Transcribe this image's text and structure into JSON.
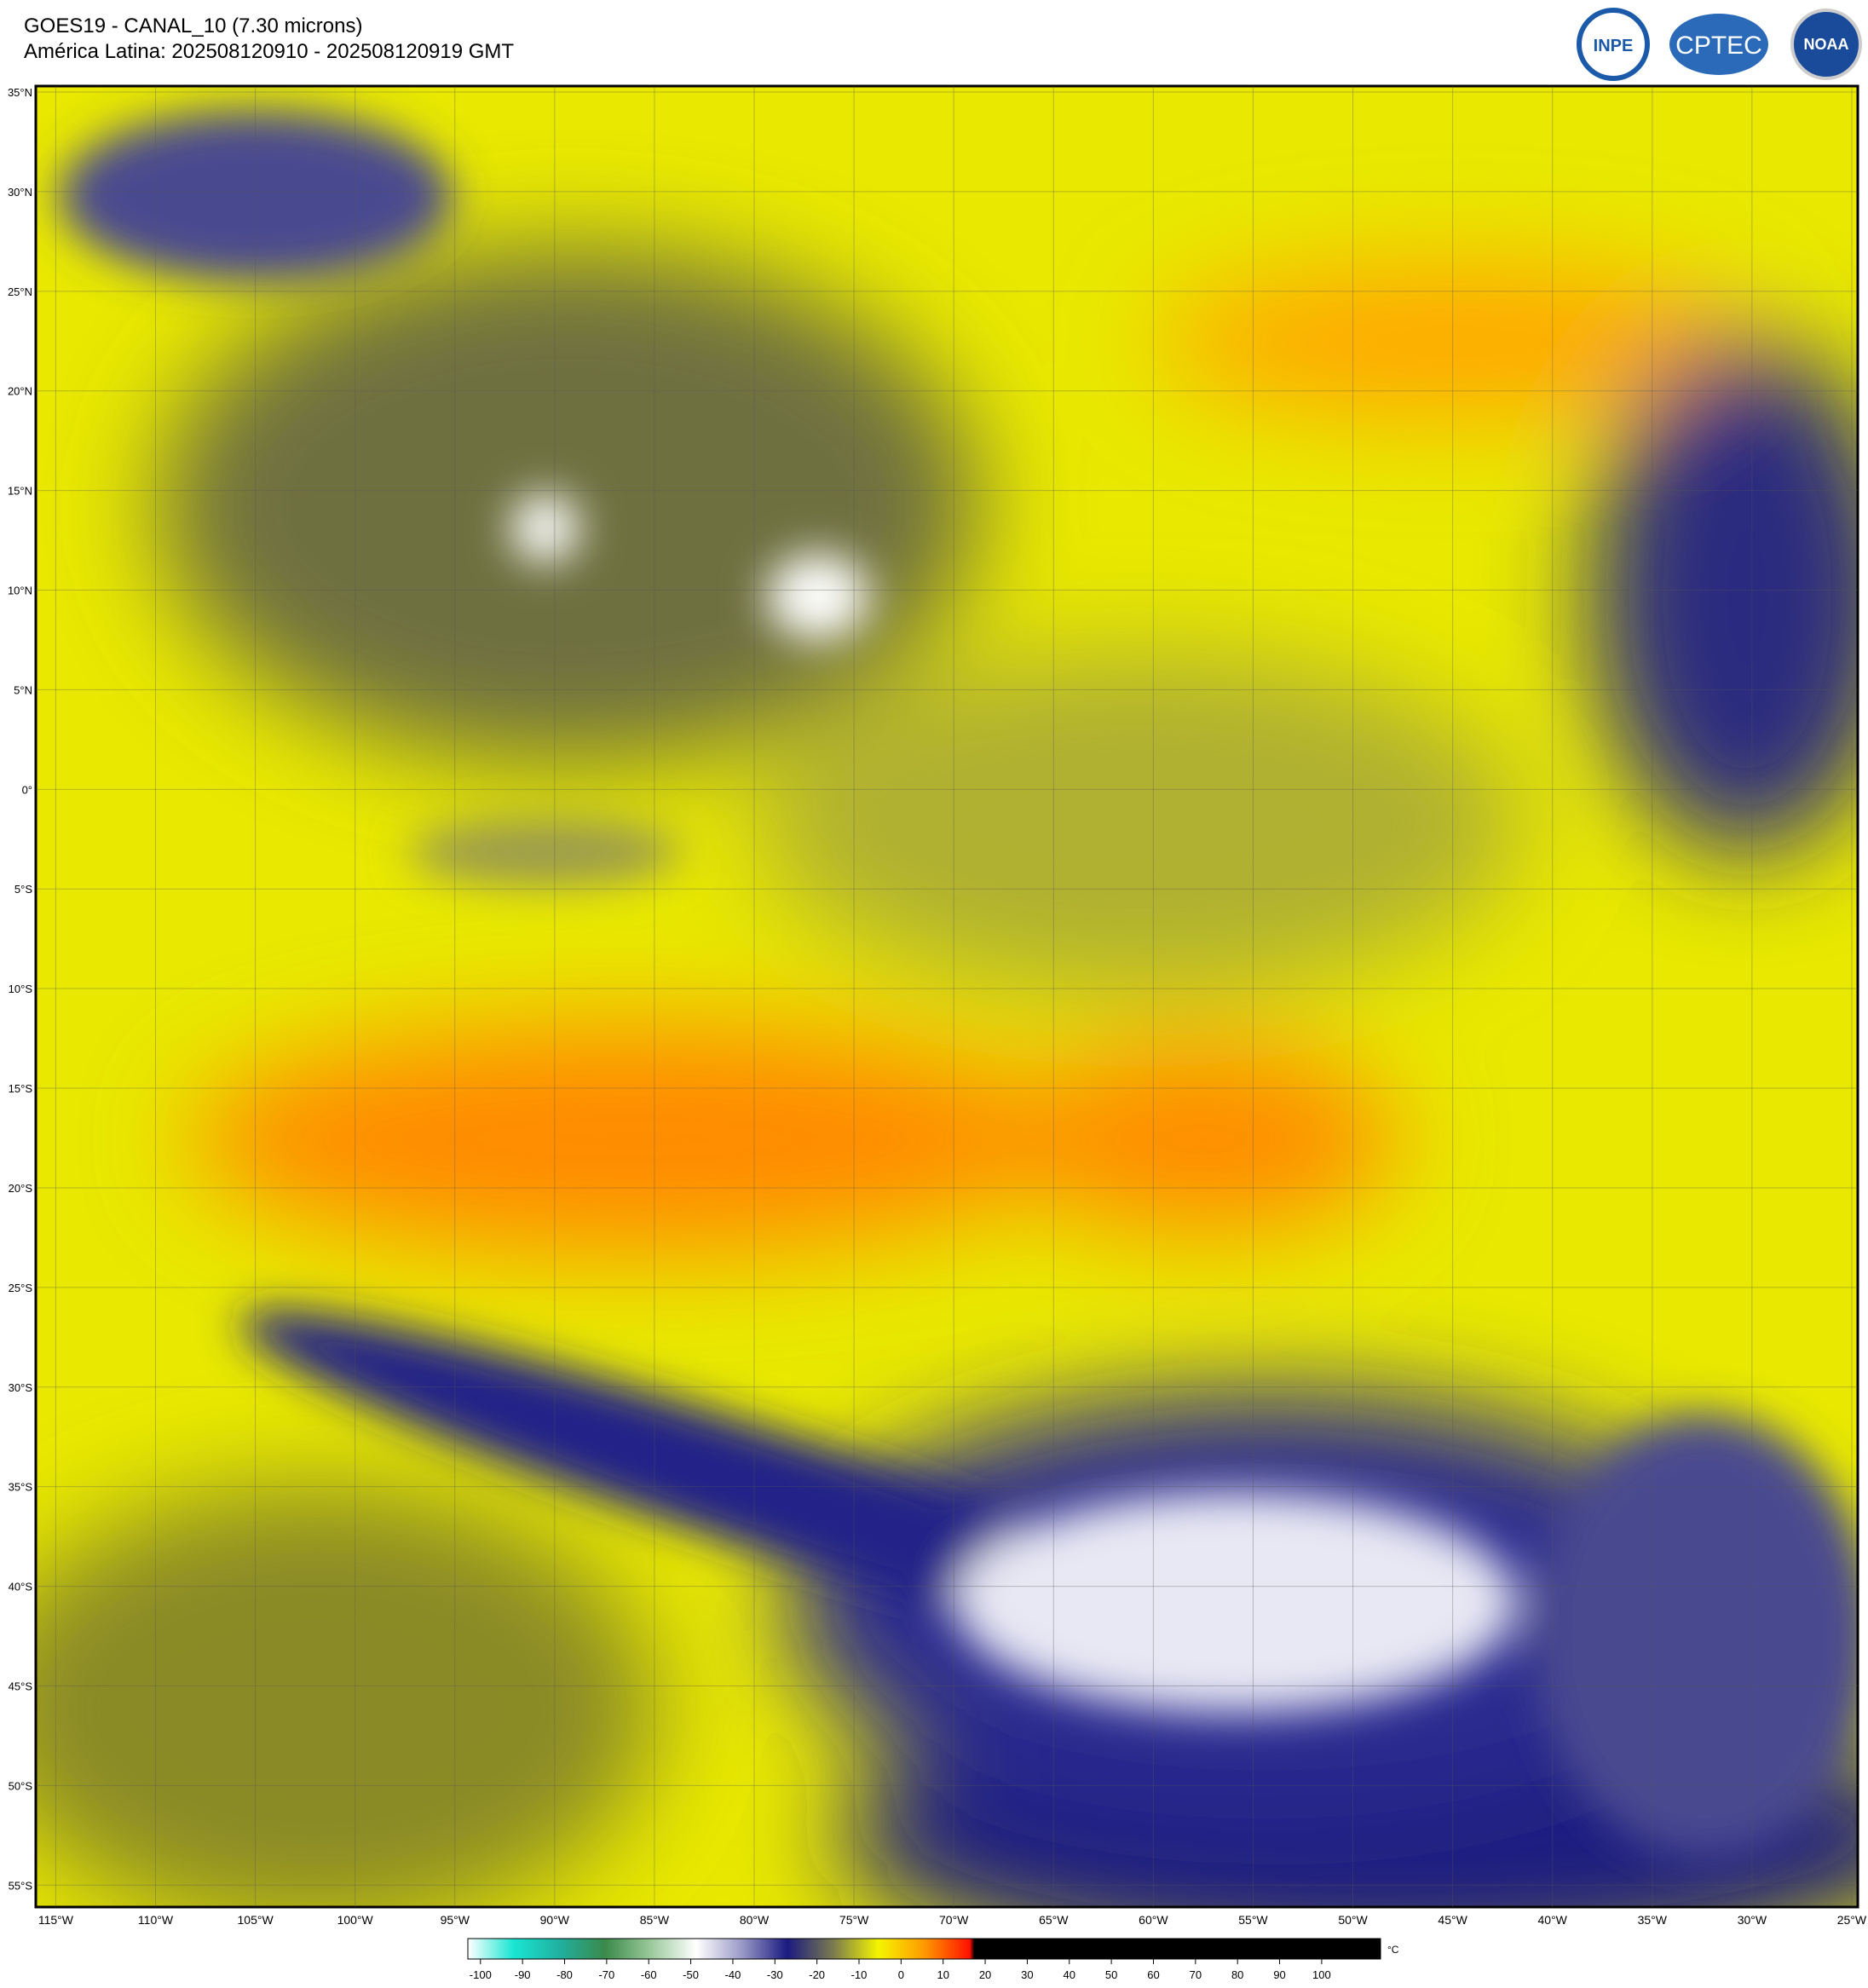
{
  "header": {
    "title": "GOES19 - CANAL_10 (7.30 microns)",
    "subtitle": "América Latina: 202508120910 - 202508120919 GMT"
  },
  "logos": [
    "INPE",
    "CPTEC",
    "NOAA"
  ],
  "map": {
    "xlim": [
      -116,
      -24.7
    ],
    "ylim": [
      -56.1,
      35.3
    ],
    "lat_ticks": [
      {
        "value": 35,
        "label": "35°N"
      },
      {
        "value": 30,
        "label": "30°N"
      },
      {
        "value": 25,
        "label": "25°N"
      },
      {
        "value": 20,
        "label": "20°N"
      },
      {
        "value": 15,
        "label": "15°N"
      },
      {
        "value": 10,
        "label": "10°N"
      },
      {
        "value": 5,
        "label": "5°N"
      },
      {
        "value": 0,
        "label": "0°"
      },
      {
        "value": -5,
        "label": "5°S"
      },
      {
        "value": -10,
        "label": "10°S"
      },
      {
        "value": -15,
        "label": "15°S"
      },
      {
        "value": -20,
        "label": "20°S"
      },
      {
        "value": -25,
        "label": "25°S"
      },
      {
        "value": -30,
        "label": "30°S"
      },
      {
        "value": -35,
        "label": "35°S"
      },
      {
        "value": -40,
        "label": "40°S"
      },
      {
        "value": -45,
        "label": "45°S"
      },
      {
        "value": -50,
        "label": "50°S"
      },
      {
        "value": -55,
        "label": "55°S"
      }
    ],
    "lon_ticks": [
      {
        "value": -115,
        "label": "115°W"
      },
      {
        "value": -110,
        "label": "110°W"
      },
      {
        "value": -105,
        "label": "105°W"
      },
      {
        "value": -100,
        "label": "100°W"
      },
      {
        "value": -95,
        "label": "95°W"
      },
      {
        "value": -90,
        "label": "90°W"
      },
      {
        "value": -85,
        "label": "85°W"
      },
      {
        "value": -80,
        "label": "80°W"
      },
      {
        "value": -75,
        "label": "75°W"
      },
      {
        "value": -70,
        "label": "70°W"
      },
      {
        "value": -65,
        "label": "65°W"
      },
      {
        "value": -60,
        "label": "60°W"
      },
      {
        "value": -55,
        "label": "55°W"
      },
      {
        "value": -50,
        "label": "50°W"
      },
      {
        "value": -45,
        "label": "45°W"
      },
      {
        "value": -40,
        "label": "40°W"
      },
      {
        "value": -35,
        "label": "35°W"
      },
      {
        "value": -30,
        "label": "30°W"
      },
      {
        "value": -25,
        "label": "25°W"
      }
    ]
  },
  "colorbar": {
    "unit": "°C",
    "lim": [
      -103,
      114
    ],
    "ticks": [
      -100,
      -90,
      -80,
      -70,
      -60,
      -50,
      -40,
      -30,
      -20,
      -10,
      0,
      10,
      20,
      30,
      40,
      50,
      60,
      70,
      80,
      90,
      100
    ]
  }
}
